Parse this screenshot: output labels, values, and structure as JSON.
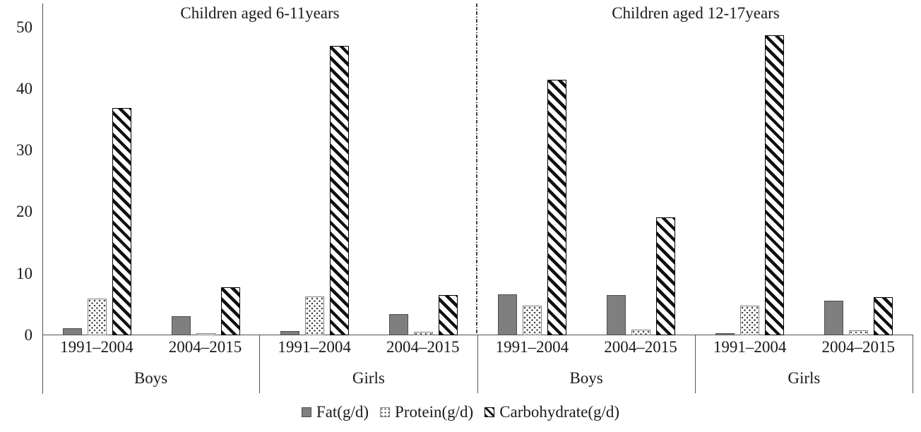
{
  "chart_data": {
    "type": "bar",
    "ylim": [
      0,
      53.5
    ],
    "ytick_labels": [
      "0",
      "10",
      "20",
      "30",
      "40",
      "50"
    ],
    "ytick_values": [
      0,
      10,
      20,
      30,
      40,
      50
    ],
    "grid": "off",
    "legend_position": "bottom-center",
    "series": [
      {
        "name": "Fat(g/d)",
        "key": "fat",
        "pattern": "solid-gray",
        "fill": "#7f7f7f"
      },
      {
        "name": "Protein(g/d)",
        "key": "protein",
        "pattern": "dots",
        "fill": "#ffffff"
      },
      {
        "name": "Carbohydrate(g/d)",
        "key": "carbohydrate",
        "pattern": "diagonal-stripes",
        "fill": "#ffffff"
      }
    ],
    "panels": [
      {
        "title": "Children aged 6-11years",
        "groups": [
          {
            "label": "Boys",
            "periods": [
              {
                "label": "1991–2004",
                "fat": 1.2,
                "protein": 6.0,
                "carbohydrate": 36.9
              },
              {
                "label": "2004–2015",
                "fat": 3.1,
                "protein": 0.3,
                "carbohydrate": 7.8
              }
            ]
          },
          {
            "label": "Girls",
            "periods": [
              {
                "label": "1991–2004",
                "fat": 0.7,
                "protein": 6.3,
                "carbohydrate": 47.0
              },
              {
                "label": "2004–2015",
                "fat": 3.4,
                "protein": 0.6,
                "carbohydrate": 6.5
              }
            ]
          }
        ]
      },
      {
        "title": "Children aged 12-17years",
        "groups": [
          {
            "label": "Boys",
            "periods": [
              {
                "label": "1991–2004",
                "fat": 6.7,
                "protein": 4.8,
                "carbohydrate": 41.5
              },
              {
                "label": "2004–2015",
                "fat": 6.5,
                "protein": 0.9,
                "carbohydrate": 19.1
              }
            ]
          },
          {
            "label": "Girls",
            "periods": [
              {
                "label": "1991–2004",
                "fat": 0.4,
                "protein": 4.8,
                "carbohydrate": 48.7
              },
              {
                "label": "2004–2015",
                "fat": 5.6,
                "protein": 0.8,
                "carbohydrate": 6.2
              }
            ]
          }
        ]
      }
    ],
    "colors": {
      "axis": "#555555",
      "bar_fat_fill": "#7f7f7f",
      "bar_fat_border": "#4d4d4d",
      "bar_protein_border": "#7f7f7f",
      "bar_carb_stripe": "#101010",
      "text": "#1a1a1a"
    }
  }
}
